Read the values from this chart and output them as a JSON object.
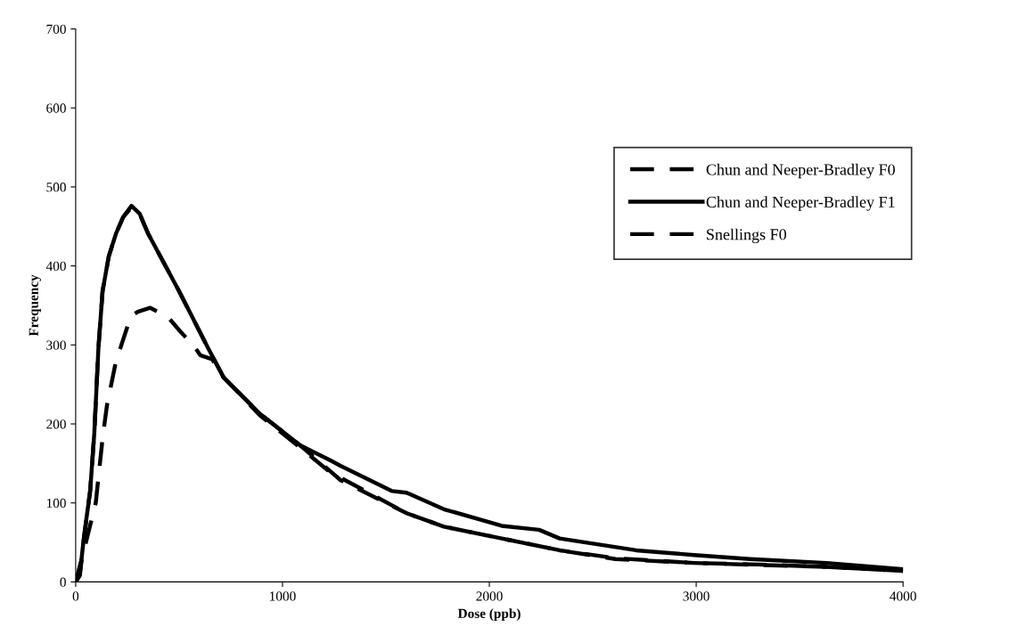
{
  "chart_data": {
    "type": "line",
    "xlabel": "Dose (ppb)",
    "ylabel": "Frequency",
    "xlim": [
      0,
      4000
    ],
    "xticks": [
      0,
      1000,
      2000,
      3000,
      4000
    ],
    "ylim": [
      0,
      700
    ],
    "yticks": [
      0,
      100,
      200,
      300,
      400,
      500,
      600,
      700
    ],
    "grid": false,
    "legend": "top right",
    "marker": "none",
    "series": [
      {
        "name": "Chun and Neeper-Bradley F0",
        "color": "#000000",
        "line_style": "dashed",
        "x": [
          0,
          20,
          40,
          70,
          90,
          110,
          130,
          160,
          195,
          230,
          270,
          310,
          350,
          500,
          640,
          715,
          890,
          1085,
          1280,
          1530,
          1600,
          1780,
          2060,
          2340,
          2610,
          2990,
          3300,
          3630,
          4000
        ],
        "values": [
          0,
          8,
          55,
          115,
          188,
          296,
          368,
          412,
          441,
          462,
          474,
          465,
          441,
          368,
          296,
          259,
          213,
          173,
          129,
          96,
          87,
          70,
          55,
          40,
          30,
          24,
          22,
          19,
          14
        ]
      },
      {
        "name": "Chun and Neeper-Bradley F1",
        "color": "#000000",
        "line_style": "solid",
        "x": [
          0,
          20,
          40,
          70,
          90,
          110,
          130,
          160,
          195,
          230,
          270,
          310,
          350,
          500,
          640,
          715,
          890,
          1085,
          1230,
          1280,
          1530,
          1600,
          1780,
          2060,
          2240,
          2340,
          2710,
          2990,
          3260,
          3630,
          4000
        ],
        "values": [
          0,
          9,
          57,
          115,
          188,
          296,
          368,
          412,
          441,
          462,
          476,
          466,
          441,
          368,
          296,
          259,
          213,
          173,
          154,
          147,
          115,
          113,
          92,
          71,
          66,
          55,
          40,
          34,
          29,
          24,
          16
        ]
      },
      {
        "name": "Snellings F0",
        "color": "#000000",
        "line_style": "dashed",
        "x": [
          0,
          40,
          97,
          131,
          151,
          193,
          220,
          266,
          300,
          359,
          444,
          506,
          571,
          602,
          660,
          715,
          890,
          1085,
          1230,
          1600,
          1780,
          2060,
          2340,
          2610,
          2990,
          3630,
          4000
        ],
        "values": [
          0,
          40,
          100,
          184,
          223,
          277,
          299,
          336,
          342,
          347,
          336,
          317,
          299,
          287,
          282,
          259,
          211,
          170,
          139,
          87,
          70,
          55,
          40,
          29,
          24,
          19,
          14
        ]
      }
    ]
  }
}
